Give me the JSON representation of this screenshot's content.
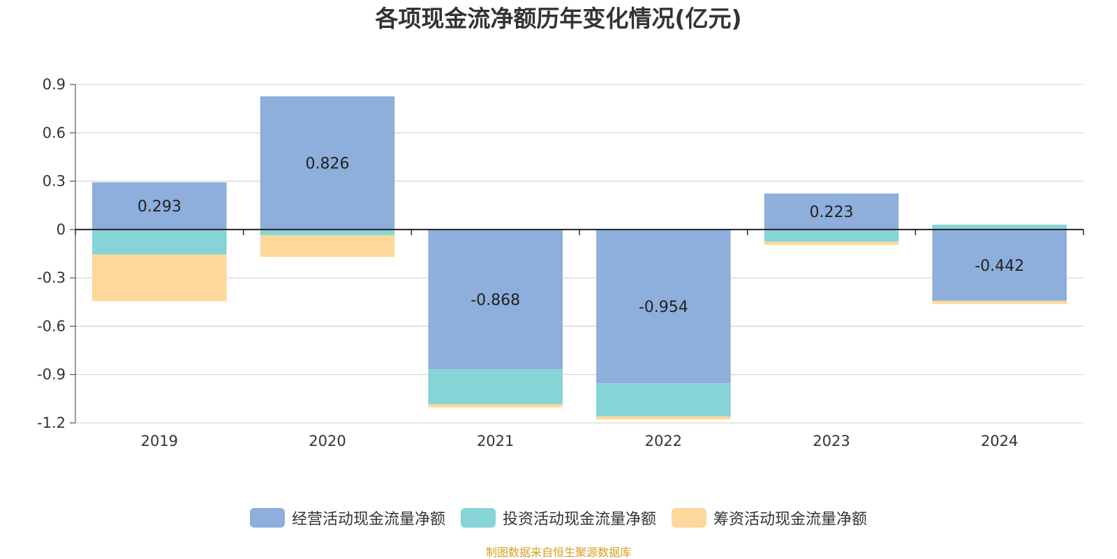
{
  "chart_data": {
    "type": "bar",
    "stacked": true,
    "title": "各项现金流净额历年变化情况(亿元)",
    "categories": [
      "2019",
      "2020",
      "2021",
      "2022",
      "2023",
      "2024"
    ],
    "series": [
      {
        "name": "经营活动现金流量净额",
        "color": "#8eaedb",
        "values": [
          0.293,
          0.826,
          -0.868,
          -0.954,
          0.223,
          -0.442
        ],
        "labels": [
          "0.293",
          "0.826",
          "-0.868",
          "-0.954",
          "0.223",
          "-0.442"
        ]
      },
      {
        "name": "投资活动现金流量净额",
        "color": "#86d4d6",
        "values": [
          -0.155,
          -0.035,
          -0.215,
          -0.205,
          -0.075,
          0.03
        ]
      },
      {
        "name": "筹资活动现金流量净额",
        "color": "#fdd89a",
        "values": [
          -0.29,
          -0.135,
          -0.02,
          -0.02,
          -0.02,
          -0.02
        ]
      }
    ],
    "ylim": [
      -1.2,
      0.9
    ],
    "yticks": [
      0.9,
      0.6,
      0.3,
      0,
      -0.3,
      -0.6,
      -0.9,
      -1.2
    ],
    "ytick_labels": [
      "0.9",
      "0.6",
      "0.3",
      "0",
      "-0.3",
      "-0.6",
      "-0.9",
      "-1.2"
    ],
    "grid": true,
    "legend_position": "bottom-center"
  },
  "source_note": "制图数据来自恒生聚源数据库"
}
